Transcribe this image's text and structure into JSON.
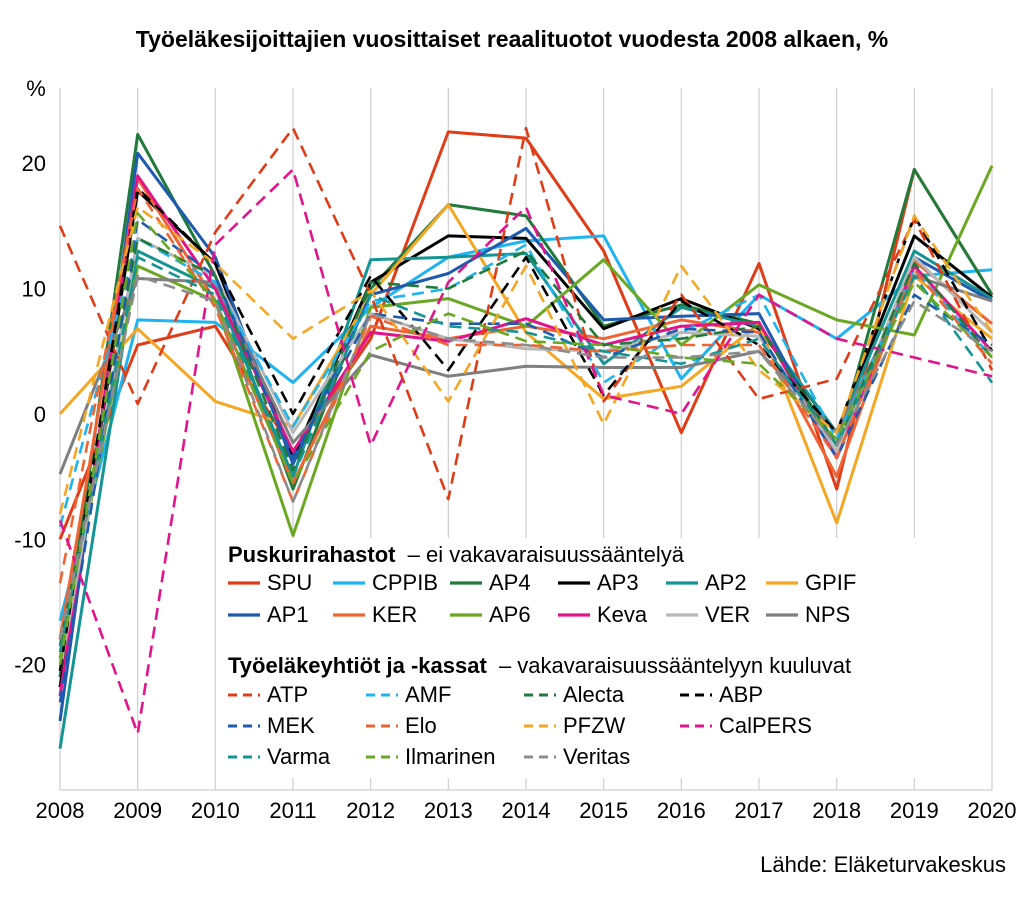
{
  "title": "Työeläkesijoittajien vuosittaiset reaalituotot vuodesta 2008 alkaen, %",
  "source": "Lähde: Eläketurvakeskus",
  "legend": {
    "group1_title": "Puskurirahastot",
    "group1_subtitle": "– ei vakavaraisuussääntelyä",
    "group2_title": "Työeläkeyhtiöt ja -kassat",
    "group2_subtitle": "– vakavaraisuussääntelyyn kuuluvat"
  },
  "chart_data": {
    "type": "line",
    "x": [
      2008,
      2009,
      2010,
      2011,
      2012,
      2013,
      2014,
      2015,
      2016,
      2017,
      2018,
      2019,
      2020
    ],
    "ylabel": "%",
    "ylim": [
      -30,
      26
    ],
    "yticks": [
      -20,
      -10,
      0,
      10,
      20
    ],
    "grid": "vertical",
    "legend_position": "inside-bottom-center",
    "series": [
      {
        "name": "SPU",
        "group": 1,
        "dash": false,
        "color": "#e03c17",
        "values": [
          -10,
          5.5,
          7,
          -3,
          6,
          22.5,
          22,
          13,
          -1.5,
          12,
          -6,
          19.5,
          9.5
        ]
      },
      {
        "name": "CPPIB",
        "group": 1,
        "dash": false,
        "color": "#1eb4f0",
        "values": [
          -16.5,
          7.5,
          7.3,
          2.5,
          8.5,
          12.5,
          13.8,
          14.2,
          2.8,
          9.5,
          6,
          11,
          11.5
        ]
      },
      {
        "name": "AP4",
        "group": 1,
        "dash": false,
        "color": "#217a3c",
        "values": [
          -21,
          22.3,
          11,
          -6,
          10,
          16.7,
          15.8,
          7,
          8.7,
          7.2,
          -2.5,
          19.5,
          9.5
        ]
      },
      {
        "name": "AP3",
        "group": 1,
        "dash": false,
        "color": "#000000",
        "values": [
          -21.8,
          17.8,
          12,
          -3.5,
          10.5,
          14.2,
          14,
          6.8,
          9.2,
          6.8,
          -1.5,
          14.2,
          9.3
        ]
      },
      {
        "name": "AP2",
        "group": 1,
        "dash": false,
        "color": "#159494",
        "values": [
          -26.7,
          13,
          10,
          -5,
          12.3,
          12.5,
          12.8,
          4,
          8.5,
          7,
          -1.5,
          13,
          9.2
        ]
      },
      {
        "name": "GPIF",
        "group": 1,
        "dash": false,
        "color": "#f5a623",
        "values": [
          0,
          6.8,
          1,
          -1,
          9.5,
          16.7,
          6.5,
          1.2,
          2.2,
          7.2,
          -8.7,
          11,
          6
        ]
      },
      {
        "name": "AP1",
        "group": 1,
        "dash": false,
        "color": "#1e5bb0",
        "values": [
          -24.5,
          20.8,
          12.5,
          -4,
          9.5,
          11.2,
          14.8,
          7.5,
          7.8,
          8,
          -3.5,
          12.5,
          9
        ]
      },
      {
        "name": "KER",
        "group": 1,
        "dash": false,
        "color": "#f06434",
        "values": [
          -18,
          18.8,
          9,
          -5.5,
          7,
          6,
          7,
          6,
          7.5,
          6.5,
          -5,
          12.2,
          7.2
        ]
      },
      {
        "name": "AP6",
        "group": 1,
        "dash": false,
        "color": "#6aa823",
        "values": [
          -19.5,
          11.8,
          9,
          -9.7,
          8.5,
          9.2,
          7,
          12.3,
          5.5,
          10.3,
          7.5,
          6.3,
          19.8
        ]
      },
      {
        "name": "Keva",
        "group": 1,
        "dash": false,
        "color": "#e2148c",
        "values": [
          -22.5,
          19,
          10,
          -3,
          6.5,
          5.8,
          7.6,
          5.5,
          7,
          7.3,
          -3.5,
          11.8,
          5
        ]
      },
      {
        "name": "VER",
        "group": 1,
        "dash": false,
        "color": "#b8b8b8",
        "values": [
          -20.5,
          14,
          11,
          -1.5,
          8,
          6,
          5.2,
          5,
          6.5,
          6.2,
          -3,
          12.5,
          6.5
        ]
      },
      {
        "name": "NPS",
        "group": 1,
        "dash": false,
        "color": "#7f7f7f",
        "values": [
          -4.8,
          10.8,
          10.5,
          -2.3,
          4.7,
          3,
          3.8,
          3.7,
          3.7,
          5,
          -1.5,
          11,
          9
        ]
      },
      {
        "name": "ATP",
        "group": 2,
        "dash": true,
        "color": "#e03c17",
        "values": [
          15,
          0.8,
          14.5,
          22.8,
          9.5,
          -6.8,
          22.8,
          1,
          9.5,
          1.2,
          2.8,
          15.5,
          3.5
        ]
      },
      {
        "name": "AMF",
        "group": 2,
        "dash": true,
        "color": "#1eb4f0",
        "values": [
          -9,
          14,
          10.5,
          -1,
          9,
          10,
          13.5,
          2.5,
          6.5,
          9.5,
          -2,
          11.5,
          4.5
        ]
      },
      {
        "name": "Alecta",
        "group": 2,
        "dash": true,
        "color": "#217a3c",
        "values": [
          -18.5,
          14,
          11,
          -4.5,
          10.5,
          10,
          13,
          5.5,
          6,
          7,
          -2.5,
          12,
          4.5
        ]
      },
      {
        "name": "ABP",
        "group": 2,
        "dash": true,
        "color": "#000000",
        "values": [
          -20.5,
          18,
          12,
          0,
          11,
          3.5,
          12.5,
          1.5,
          9,
          5.5,
          -1.5,
          15.8,
          5
        ]
      },
      {
        "name": "MEK",
        "group": 2,
        "dash": true,
        "color": "#1e5bb0",
        "values": [
          -23,
          15.5,
          11,
          -3.5,
          8,
          7.2,
          7.2,
          4.5,
          6.8,
          6.5,
          -3.5,
          9.5,
          5.5
        ]
      },
      {
        "name": "Elo",
        "group": 2,
        "dash": true,
        "color": "#f06434",
        "values": [
          -13.5,
          18,
          8.5,
          -7,
          7.8,
          5.5,
          5.5,
          5,
          5.5,
          5.5,
          -3.5,
          11.5,
          4
        ]
      },
      {
        "name": "PFZW",
        "group": 2,
        "dash": true,
        "color": "#f5a623",
        "values": [
          -8,
          16.5,
          12,
          6,
          9.8,
          1,
          11.8,
          -0.8,
          11.8,
          3.5,
          -1.5,
          15.8,
          6.5
        ]
      },
      {
        "name": "CalPERS",
        "group": 2,
        "dash": true,
        "color": "#e2148c",
        "values": [
          -8.5,
          -25.5,
          13.5,
          19.5,
          -2.5,
          10.5,
          16.5,
          1.5,
          0,
          9.5,
          6,
          4.5,
          3
        ]
      },
      {
        "name": "Varma",
        "group": 2,
        "dash": true,
        "color": "#159494",
        "values": [
          -19,
          12.5,
          9.5,
          -5,
          9.5,
          7,
          6.5,
          5,
          4,
          6,
          -2.5,
          11,
          2.5
        ]
      },
      {
        "name": "Ilmarinen",
        "group": 2,
        "dash": true,
        "color": "#6aa823",
        "values": [
          -20,
          16,
          9,
          -5.5,
          5,
          8,
          5.8,
          5.5,
          4.5,
          4,
          -2,
          10.5,
          4.5
        ]
      },
      {
        "name": "Veritas",
        "group": 2,
        "dash": true,
        "color": "#8c8c8c",
        "values": [
          -18,
          11,
          9,
          -7,
          8,
          6,
          5.5,
          4.5,
          4.5,
          5,
          -2.5,
          9,
          5
        ]
      }
    ]
  }
}
